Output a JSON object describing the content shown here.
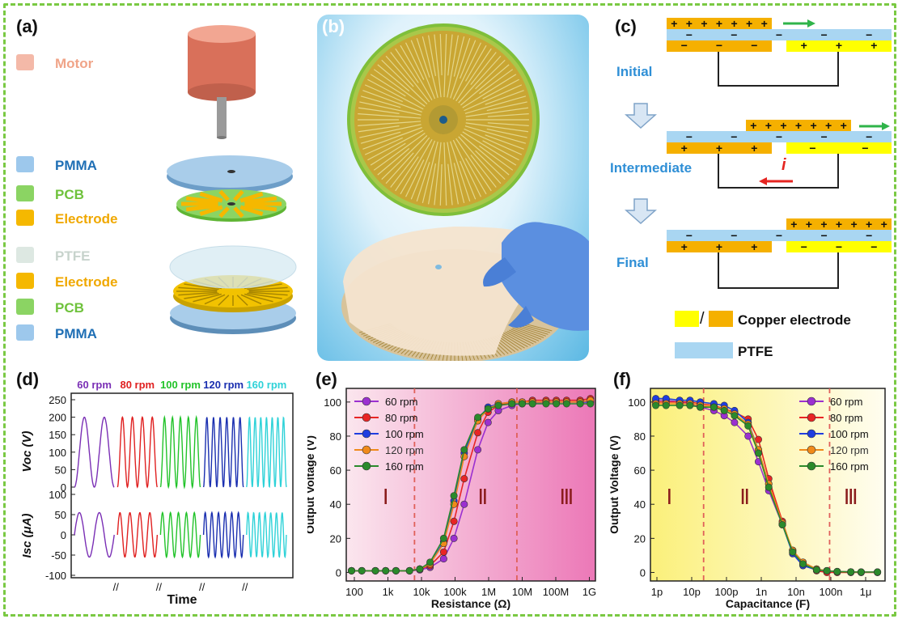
{
  "panel_labels": {
    "a": "(a)",
    "b": "(b)",
    "c": "(c)",
    "d": "(d)",
    "e": "(e)",
    "f": "(f)"
  },
  "panel_a": {
    "legend": [
      {
        "label": "Motor",
        "color": "#f4b9a8",
        "text_color": "#f0a488"
      },
      {
        "label": "PMMA",
        "color": "#9dc8ec",
        "text_color": "#1f6fb5"
      },
      {
        "label": "PCB",
        "color": "#8bd463",
        "text_color": "#6fc23c"
      },
      {
        "label": "Electrode",
        "color": "#f5b800",
        "text_color": "#f0a800"
      },
      {
        "label": "PTFE",
        "color": "#dde8e2",
        "text_color": "#c7d3cc"
      },
      {
        "label": "Electrode",
        "color": "#f5b800",
        "text_color": "#f0a800"
      },
      {
        "label": "PCB",
        "color": "#8bd463",
        "text_color": "#6fc23c"
      },
      {
        "label": "PMMA",
        "color": "#9dc8ec",
        "text_color": "#1f6fb5"
      }
    ]
  },
  "panel_c": {
    "stages": [
      "Initial",
      "Intermediate",
      "Final"
    ],
    "current_symbol": "i",
    "legend_copper": "Copper electrode",
    "legend_ptfe": "PTFE",
    "colors": {
      "yellow": "#ffff00",
      "orange": "#f5b000",
      "ptfe": "#a9d6f2",
      "stage_text": "#2f8fd6",
      "arrow_green": "#2fb44a",
      "arrow_red": "#e52521"
    }
  },
  "chart_data": [
    {
      "panel": "d",
      "type": "line",
      "ylabel_top": "Voc (V)",
      "ylabel_bottom": "Isc (μA)",
      "xlabel": "Time",
      "ticks_top": [
        "250",
        "200",
        "150",
        "100",
        "50",
        "0"
      ],
      "ticks_bottom": [
        "100",
        "50",
        "0",
        "-50",
        "-100"
      ],
      "series": [
        {
          "name": "60 rpm",
          "color": "#7a2fb5",
          "cycles": 2
        },
        {
          "name": "80 rpm",
          "color": "#e02020",
          "cycles": 4
        },
        {
          "name": "100 rpm",
          "color": "#22c32a",
          "cycles": 5
        },
        {
          "name": "120 rpm",
          "color": "#1a2fb0",
          "cycles": 6
        },
        {
          "name": "160 rpm",
          "color": "#2ed2d8",
          "cycles": 7
        }
      ],
      "voc_range": [
        0,
        200
      ],
      "isc_range": [
        -100,
        100
      ]
    },
    {
      "panel": "e",
      "type": "line",
      "xlabel": "Resistance (Ω)",
      "ylabel": "Output Voltage (V)",
      "xscale": "log",
      "xticks": [
        "100",
        "1k",
        "10k",
        "100k",
        "1M",
        "10M",
        "100M",
        "1G"
      ],
      "yticks": [
        "0",
        "20",
        "40",
        "60",
        "80",
        "100"
      ],
      "ylim": [
        -5,
        108
      ],
      "regions": [
        "Ⅰ",
        "Ⅱ",
        "Ⅲ"
      ],
      "x": [
        100,
        200,
        500,
        1000,
        2000,
        5000,
        10000,
        20000,
        50000,
        100000,
        200000,
        500000,
        1000000,
        2000000,
        5000000,
        10000000,
        20000000,
        50000000,
        100000000,
        200000000,
        500000000,
        1000000000
      ],
      "series": [
        {
          "name": "60 rpm",
          "color": "#9b30d0",
          "values": [
            1,
            1,
            1,
            1,
            1,
            1,
            1.5,
            3,
            8,
            20,
            40,
            72,
            88,
            95,
            98,
            99,
            99,
            100,
            100,
            100,
            100,
            100
          ]
        },
        {
          "name": "80 rpm",
          "color": "#e82525",
          "values": [
            1,
            1,
            1,
            1,
            1,
            1,
            2,
            4,
            12,
            30,
            55,
            82,
            94,
            98,
            100,
            100,
            101,
            101,
            101,
            101,
            101,
            102
          ]
        },
        {
          "name": "100 rpm",
          "color": "#1f3de0",
          "values": [
            1,
            1,
            1,
            1,
            1,
            1,
            2,
            5,
            18,
            42,
            70,
            90,
            97,
            99,
            100,
            100,
            100,
            100,
            100,
            100,
            100,
            100
          ]
        },
        {
          "name": "120 rpm",
          "color": "#f08a1a",
          "values": [
            1,
            1,
            1,
            1,
            1,
            1,
            2,
            5,
            17,
            40,
            68,
            89,
            96,
            99,
            100,
            100,
            100,
            100,
            100,
            100,
            100,
            101
          ]
        },
        {
          "name": "160 rpm",
          "color": "#2b8a2b",
          "values": [
            1,
            1,
            1,
            1,
            1,
            1,
            2,
            6,
            20,
            45,
            72,
            91,
            96,
            98,
            99,
            99,
            99,
            99,
            99,
            99,
            99,
            99
          ]
        }
      ]
    },
    {
      "panel": "f",
      "type": "line",
      "xlabel": "Capacitance (F)",
      "ylabel": "Output Voltage (V)",
      "xscale": "log",
      "xticks": [
        "1p",
        "10p",
        "100p",
        "1n",
        "10n",
        "100n",
        "1μ"
      ],
      "yticks": [
        "0",
        "20",
        "40",
        "60",
        "80",
        "100"
      ],
      "ylim": [
        -5,
        108
      ],
      "regions": [
        "Ⅰ",
        "Ⅱ",
        "Ⅲ"
      ],
      "x": [
        1e-12,
        2e-12,
        5e-12,
        1e-11,
        2e-11,
        5e-11,
        1e-10,
        2e-10,
        5e-10,
        1e-09,
        2e-09,
        5e-09,
        1e-08,
        2e-08,
        5e-08,
        1e-07,
        2e-07,
        5e-07,
        1e-06,
        3e-06
      ],
      "series": [
        {
          "name": "60 rpm",
          "color": "#9b30d0",
          "values": [
            101,
            101,
            100,
            99,
            97,
            95,
            92,
            88,
            80,
            65,
            48,
            28,
            13,
            6,
            2,
            1,
            0.5,
            0.3,
            0.2,
            0.2
          ]
        },
        {
          "name": "80 rpm",
          "color": "#e82525",
          "values": [
            100,
            100,
            100,
            100,
            99,
            98,
            96,
            94,
            90,
            78,
            55,
            30,
            12,
            5,
            1,
            0,
            0,
            0,
            0,
            0
          ]
        },
        {
          "name": "100 rpm",
          "color": "#1f3de0",
          "values": [
            102,
            102,
            101,
            101,
            100,
            99,
            98,
            95,
            88,
            72,
            52,
            28,
            11,
            4,
            1.5,
            1,
            0.5,
            0.3,
            0.2,
            0.2
          ]
        },
        {
          "name": "120 rpm",
          "color": "#f08a1a",
          "values": [
            99,
            99,
            99,
            99,
            98,
            97,
            96,
            93,
            87,
            72,
            52,
            29,
            13,
            6,
            2,
            1,
            0.5,
            0.3,
            0.2,
            0.2
          ]
        },
        {
          "name": "160 rpm",
          "color": "#2b8a2b",
          "values": [
            98,
            98,
            98,
            98,
            97,
            97,
            95,
            92,
            86,
            70,
            50,
            28,
            12,
            5,
            1.5,
            1,
            0.5,
            0.3,
            0.2,
            0.2
          ]
        }
      ]
    }
  ]
}
